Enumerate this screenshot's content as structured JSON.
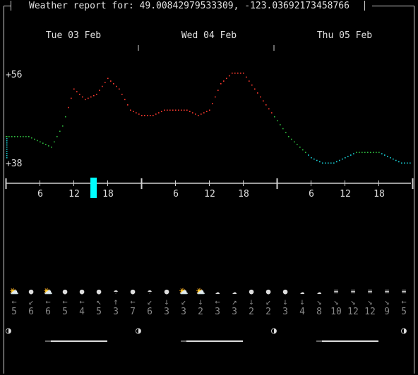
{
  "title": "Weather report for: 49.00842979533309, -123.03692173458766",
  "days": [
    "Tue 03 Feb",
    "Wed 04 Feb",
    "Thu 05 Feb"
  ],
  "y_labels": {
    "max": "+56",
    "min": "+38"
  },
  "hour_labels": [
    "6",
    "12",
    "18",
    "6",
    "12",
    "18",
    "6",
    "12",
    "18"
  ],
  "colors": {
    "hot": "#ff3b30",
    "mild": "#2fbf3f",
    "cool": "#19d5dc",
    "axis": "#d0d0d0",
    "cursor": "#00ffff"
  },
  "chart_data": {
    "type": "line",
    "ylim": [
      38,
      56
    ],
    "x_hours": [
      0,
      2,
      4,
      6,
      8,
      10,
      12,
      14,
      16,
      18,
      20,
      22,
      24,
      26,
      28,
      30,
      32,
      34,
      36,
      38,
      40,
      42,
      44,
      46,
      48,
      50,
      52,
      54,
      56,
      58,
      60,
      62,
      64,
      66,
      68,
      70,
      72
    ],
    "values": [
      44,
      44,
      44,
      43,
      42,
      46,
      53,
      51,
      52,
      55,
      53,
      49,
      48,
      48,
      49,
      49,
      49,
      48,
      49,
      54,
      56,
      56,
      53,
      50,
      47,
      44,
      42,
      40,
      39,
      39,
      40,
      41,
      41,
      41,
      40,
      39,
      39
    ]
  },
  "icons": [
    "partly-cloudy",
    "clear",
    "partly-cloudy",
    "clear",
    "clear",
    "clear",
    "drizzle",
    "clear",
    "drizzle",
    "clear",
    "partly-cloudy",
    "partly-cloudy",
    "cloudy",
    "cloudy",
    "clear",
    "clear",
    "clear",
    "cloudy",
    "cloudy",
    "fog",
    "fog",
    "fog",
    "fog",
    "fog"
  ],
  "wind_dirs": [
    "←",
    "↙",
    "←",
    "←",
    "←",
    "↖",
    "↑",
    "←",
    "↙",
    "↓",
    "↙",
    "↓",
    "←",
    "↗",
    "↓",
    "↙",
    "↓",
    "↓",
    "↘",
    "↘",
    "↘",
    "↘",
    "↘",
    "←"
  ],
  "wind_speeds": [
    "5",
    "6",
    "6",
    "5",
    "4",
    "5",
    "3",
    "7",
    "6",
    "3",
    "3",
    "2",
    "3",
    "3",
    "2",
    "2",
    "3",
    "4",
    "8",
    "10",
    "12",
    "12",
    "9",
    "5"
  ],
  "moon_phase": "◑"
}
